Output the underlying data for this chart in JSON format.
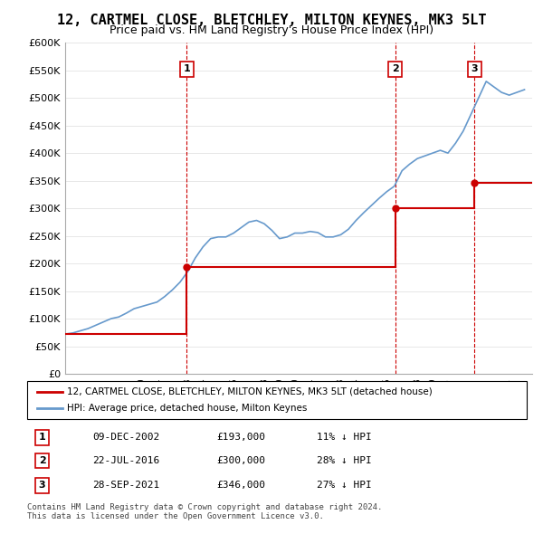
{
  "title": "12, CARTMEL CLOSE, BLETCHLEY, MILTON KEYNES, MK3 5LT",
  "subtitle": "Price paid vs. HM Land Registry's House Price Index (HPI)",
  "ylim": [
    0,
    600000
  ],
  "yticks": [
    0,
    50000,
    100000,
    150000,
    200000,
    250000,
    300000,
    350000,
    400000,
    450000,
    500000,
    550000,
    600000
  ],
  "xlim_start": 1995.0,
  "xlim_end": 2025.5,
  "sales": [
    {
      "date_num": 2002.94,
      "price": 193000,
      "label": "1",
      "date_str": "09-DEC-2002",
      "pct": "11%"
    },
    {
      "date_num": 2016.55,
      "price": 300000,
      "label": "2",
      "date_str": "22-JUL-2016",
      "pct": "28%"
    },
    {
      "date_num": 2021.74,
      "price": 346000,
      "label": "3",
      "date_str": "28-SEP-2021",
      "pct": "27%"
    }
  ],
  "red_line_color": "#cc0000",
  "blue_line_color": "#6699cc",
  "dashed_line_color": "#cc0000",
  "legend_box_color": "#ffffff",
  "legend_border_color": "#000000",
  "footer_text": "Contains HM Land Registry data © Crown copyright and database right 2024.\nThis data is licensed under the Open Government Licence v3.0.",
  "legend_line1": "12, CARTMEL CLOSE, BLETCHLEY, MILTON KEYNES, MK3 5LT (detached house)",
  "legend_line2": "HPI: Average price, detached house, Milton Keynes",
  "hpi_data": {
    "years": [
      1995.0,
      1995.5,
      1996.0,
      1996.5,
      1997.0,
      1997.5,
      1998.0,
      1998.5,
      1999.0,
      1999.5,
      2000.0,
      2000.5,
      2001.0,
      2001.5,
      2002.0,
      2002.5,
      2003.0,
      2003.5,
      2004.0,
      2004.5,
      2005.0,
      2005.5,
      2006.0,
      2006.5,
      2007.0,
      2007.5,
      2008.0,
      2008.5,
      2009.0,
      2009.5,
      2010.0,
      2010.5,
      2011.0,
      2011.5,
      2012.0,
      2012.5,
      2013.0,
      2013.5,
      2014.0,
      2014.5,
      2015.0,
      2015.5,
      2016.0,
      2016.5,
      2017.0,
      2017.5,
      2018.0,
      2018.5,
      2019.0,
      2019.5,
      2020.0,
      2020.5,
      2021.0,
      2021.5,
      2022.0,
      2022.5,
      2023.0,
      2023.5,
      2024.0,
      2024.5,
      2025.0
    ],
    "values": [
      72000,
      74000,
      78000,
      82000,
      88000,
      94000,
      100000,
      103000,
      110000,
      118000,
      122000,
      126000,
      130000,
      140000,
      152000,
      166000,
      185000,
      210000,
      230000,
      245000,
      248000,
      248000,
      255000,
      265000,
      275000,
      278000,
      272000,
      260000,
      245000,
      248000,
      255000,
      255000,
      258000,
      256000,
      248000,
      248000,
      252000,
      262000,
      278000,
      292000,
      305000,
      318000,
      330000,
      340000,
      368000,
      380000,
      390000,
      395000,
      400000,
      405000,
      400000,
      418000,
      440000,
      470000,
      500000,
      530000,
      520000,
      510000,
      505000,
      510000,
      515000
    ]
  },
  "price_segments": [
    {
      "x_start": 1995.0,
      "x_end": 2002.94,
      "y": 72000
    },
    {
      "x_start": 2002.94,
      "x_end": 2016.55,
      "y": 193000
    },
    {
      "x_start": 2016.55,
      "x_end": 2021.74,
      "y": 300000
    },
    {
      "x_start": 2021.74,
      "x_end": 2025.5,
      "y": 346000
    }
  ]
}
